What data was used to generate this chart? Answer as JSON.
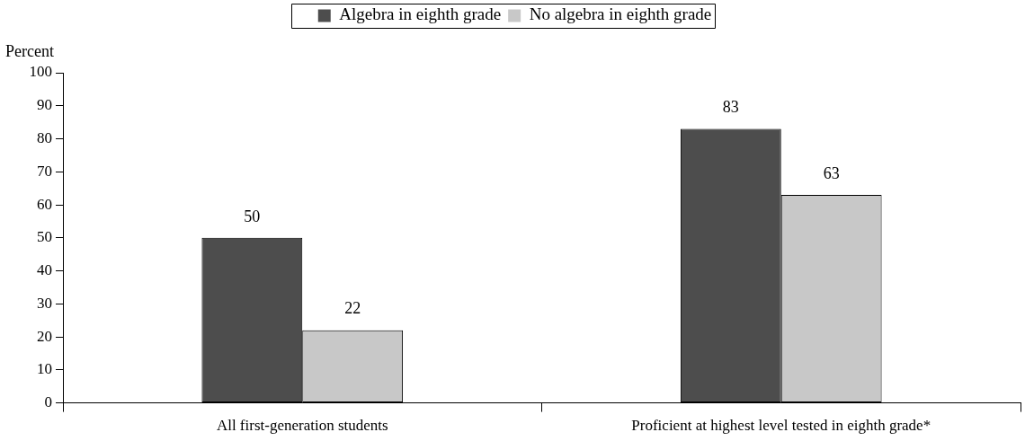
{
  "chart_data": {
    "type": "bar",
    "ylabel": "Percent",
    "categories": [
      "All first-generation students",
      "Proficient at highest level tested in eighth grade*"
    ],
    "series": [
      {
        "name": "Algebra in eighth grade",
        "color": "#4d4d4d",
        "values": [
          50,
          83
        ]
      },
      {
        "name": "No algebra in eighth grade",
        "color": "#c8c8c8",
        "values": [
          22,
          63
        ]
      }
    ],
    "ylim": [
      0,
      100
    ],
    "yticks": [
      0,
      10,
      20,
      30,
      40,
      50,
      60,
      70,
      80,
      90,
      100
    ],
    "grid": false,
    "legend": "top",
    "data_labels": true
  }
}
